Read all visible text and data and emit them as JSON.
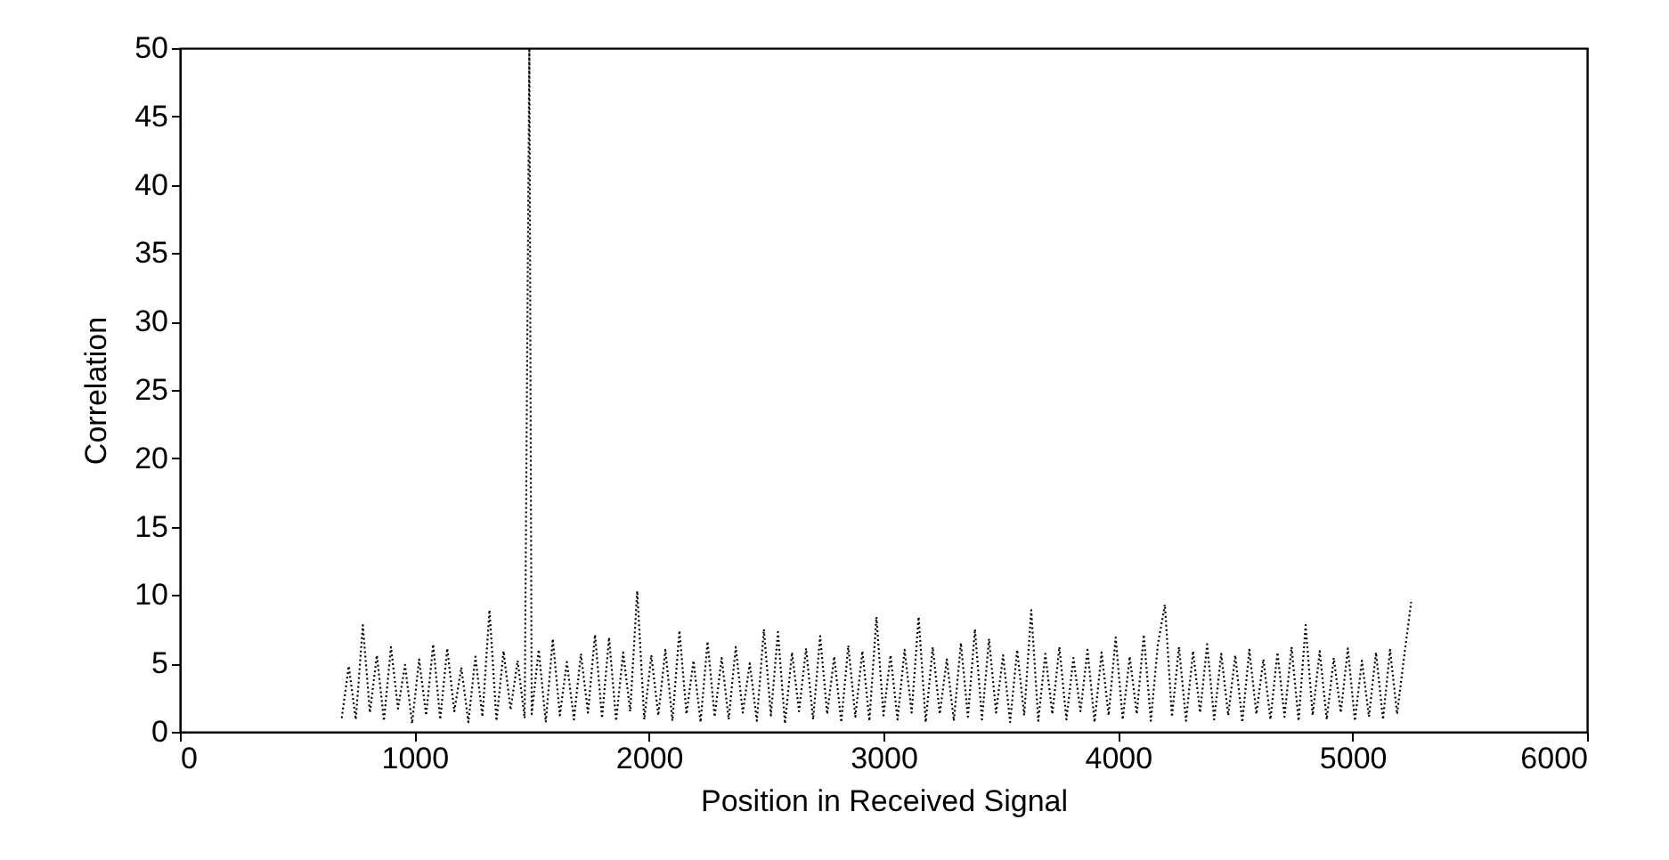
{
  "chart_data": {
    "type": "line",
    "xlabel": "Position in Received Signal",
    "ylabel": "Correlation",
    "xlim": [
      0,
      6000
    ],
    "ylim": [
      0,
      50
    ],
    "xticks": [
      0,
      1000,
      2000,
      3000,
      4000,
      5000,
      6000
    ],
    "yticks": [
      0,
      5,
      10,
      15,
      20,
      25,
      30,
      35,
      40,
      45,
      50
    ],
    "grid": false,
    "marker": "none",
    "line_style": "dotted",
    "series": [
      {
        "color": "#000000",
        "x": [
          690,
          720,
          750,
          780,
          810,
          840,
          870,
          900,
          930,
          960,
          990,
          1020,
          1050,
          1080,
          1110,
          1140,
          1170,
          1200,
          1230,
          1260,
          1290,
          1320,
          1350,
          1380,
          1410,
          1440,
          1470,
          1490,
          1500,
          1530,
          1560,
          1590,
          1620,
          1650,
          1680,
          1710,
          1740,
          1770,
          1800,
          1830,
          1860,
          1890,
          1920,
          1950,
          1980,
          2010,
          2040,
          2070,
          2100,
          2130,
          2160,
          2190,
          2220,
          2250,
          2280,
          2310,
          2340,
          2370,
          2400,
          2430,
          2460,
          2490,
          2520,
          2550,
          2580,
          2610,
          2640,
          2670,
          2700,
          2730,
          2760,
          2790,
          2820,
          2850,
          2880,
          2910,
          2940,
          2970,
          3000,
          3030,
          3060,
          3090,
          3120,
          3150,
          3180,
          3210,
          3240,
          3270,
          3300,
          3330,
          3360,
          3390,
          3420,
          3450,
          3480,
          3510,
          3540,
          3570,
          3600,
          3630,
          3660,
          3690,
          3720,
          3750,
          3780,
          3810,
          3840,
          3870,
          3900,
          3930,
          3960,
          3990,
          4020,
          4050,
          4080,
          4110,
          4140,
          4170,
          4200,
          4230,
          4260,
          4290,
          4320,
          4350,
          4380,
          4410,
          4440,
          4470,
          4500,
          4530,
          4560,
          4590,
          4620,
          4650,
          4680,
          4710,
          4740,
          4770,
          4800,
          4830,
          4860,
          4890,
          4920,
          4950,
          4980,
          5010,
          5040,
          5070,
          5100,
          5130,
          5160,
          5190,
          5220,
          5250
        ],
        "values": [
          1.0,
          4.8,
          0.9,
          7.8,
          1.4,
          5.6,
          0.8,
          6.2,
          1.7,
          4.9,
          0.6,
          5.3,
          1.2,
          6.4,
          0.9,
          6.1,
          1.5,
          4.7,
          0.7,
          5.5,
          1.1,
          8.9,
          0.8,
          5.9,
          1.6,
          5.2,
          1.0,
          50,
          1.3,
          6.0,
          0.7,
          6.8,
          1.2,
          5.1,
          0.9,
          5.7,
          1.4,
          7.1,
          1.0,
          6.9,
          0.8,
          5.8,
          1.5,
          10.3,
          0.9,
          5.6,
          1.2,
          6.0,
          0.8,
          7.4,
          1.3,
          5.2,
          0.7,
          6.6,
          1.1,
          5.4,
          0.9,
          6.2,
          1.4,
          5.0,
          0.8,
          7.5,
          1.2,
          7.3,
          0.6,
          5.8,
          1.5,
          6.1,
          0.9,
          7.0,
          1.3,
          5.5,
          0.7,
          6.3,
          1.1,
          5.9,
          0.8,
          8.4,
          1.2,
          5.6,
          0.9,
          6.0,
          1.4,
          8.4,
          0.7,
          6.2,
          1.3,
          5.3,
          0.8,
          6.5,
          1.1,
          7.5,
          0.9,
          6.8,
          1.4,
          5.6,
          0.7,
          6.0,
          1.2,
          8.9,
          0.8,
          5.7,
          1.3,
          6.2,
          0.9,
          5.4,
          1.5,
          6.0,
          0.7,
          5.8,
          1.2,
          6.9,
          0.9,
          5.5,
          1.3,
          7.1,
          0.8,
          6.4,
          9.3,
          1.1,
          6.2,
          0.8,
          5.9,
          1.4,
          6.4,
          0.9,
          5.7,
          1.2,
          5.6,
          0.7,
          6.0,
          1.3,
          5.3,
          0.9,
          5.8,
          1.1,
          6.2,
          0.8,
          7.8,
          1.2,
          5.9,
          0.9,
          5.4,
          1.4,
          6.1,
          0.8,
          5.2,
          1.1,
          5.8,
          0.9,
          6.0,
          1.3,
          5.5,
          9.5
        ]
      }
    ]
  }
}
